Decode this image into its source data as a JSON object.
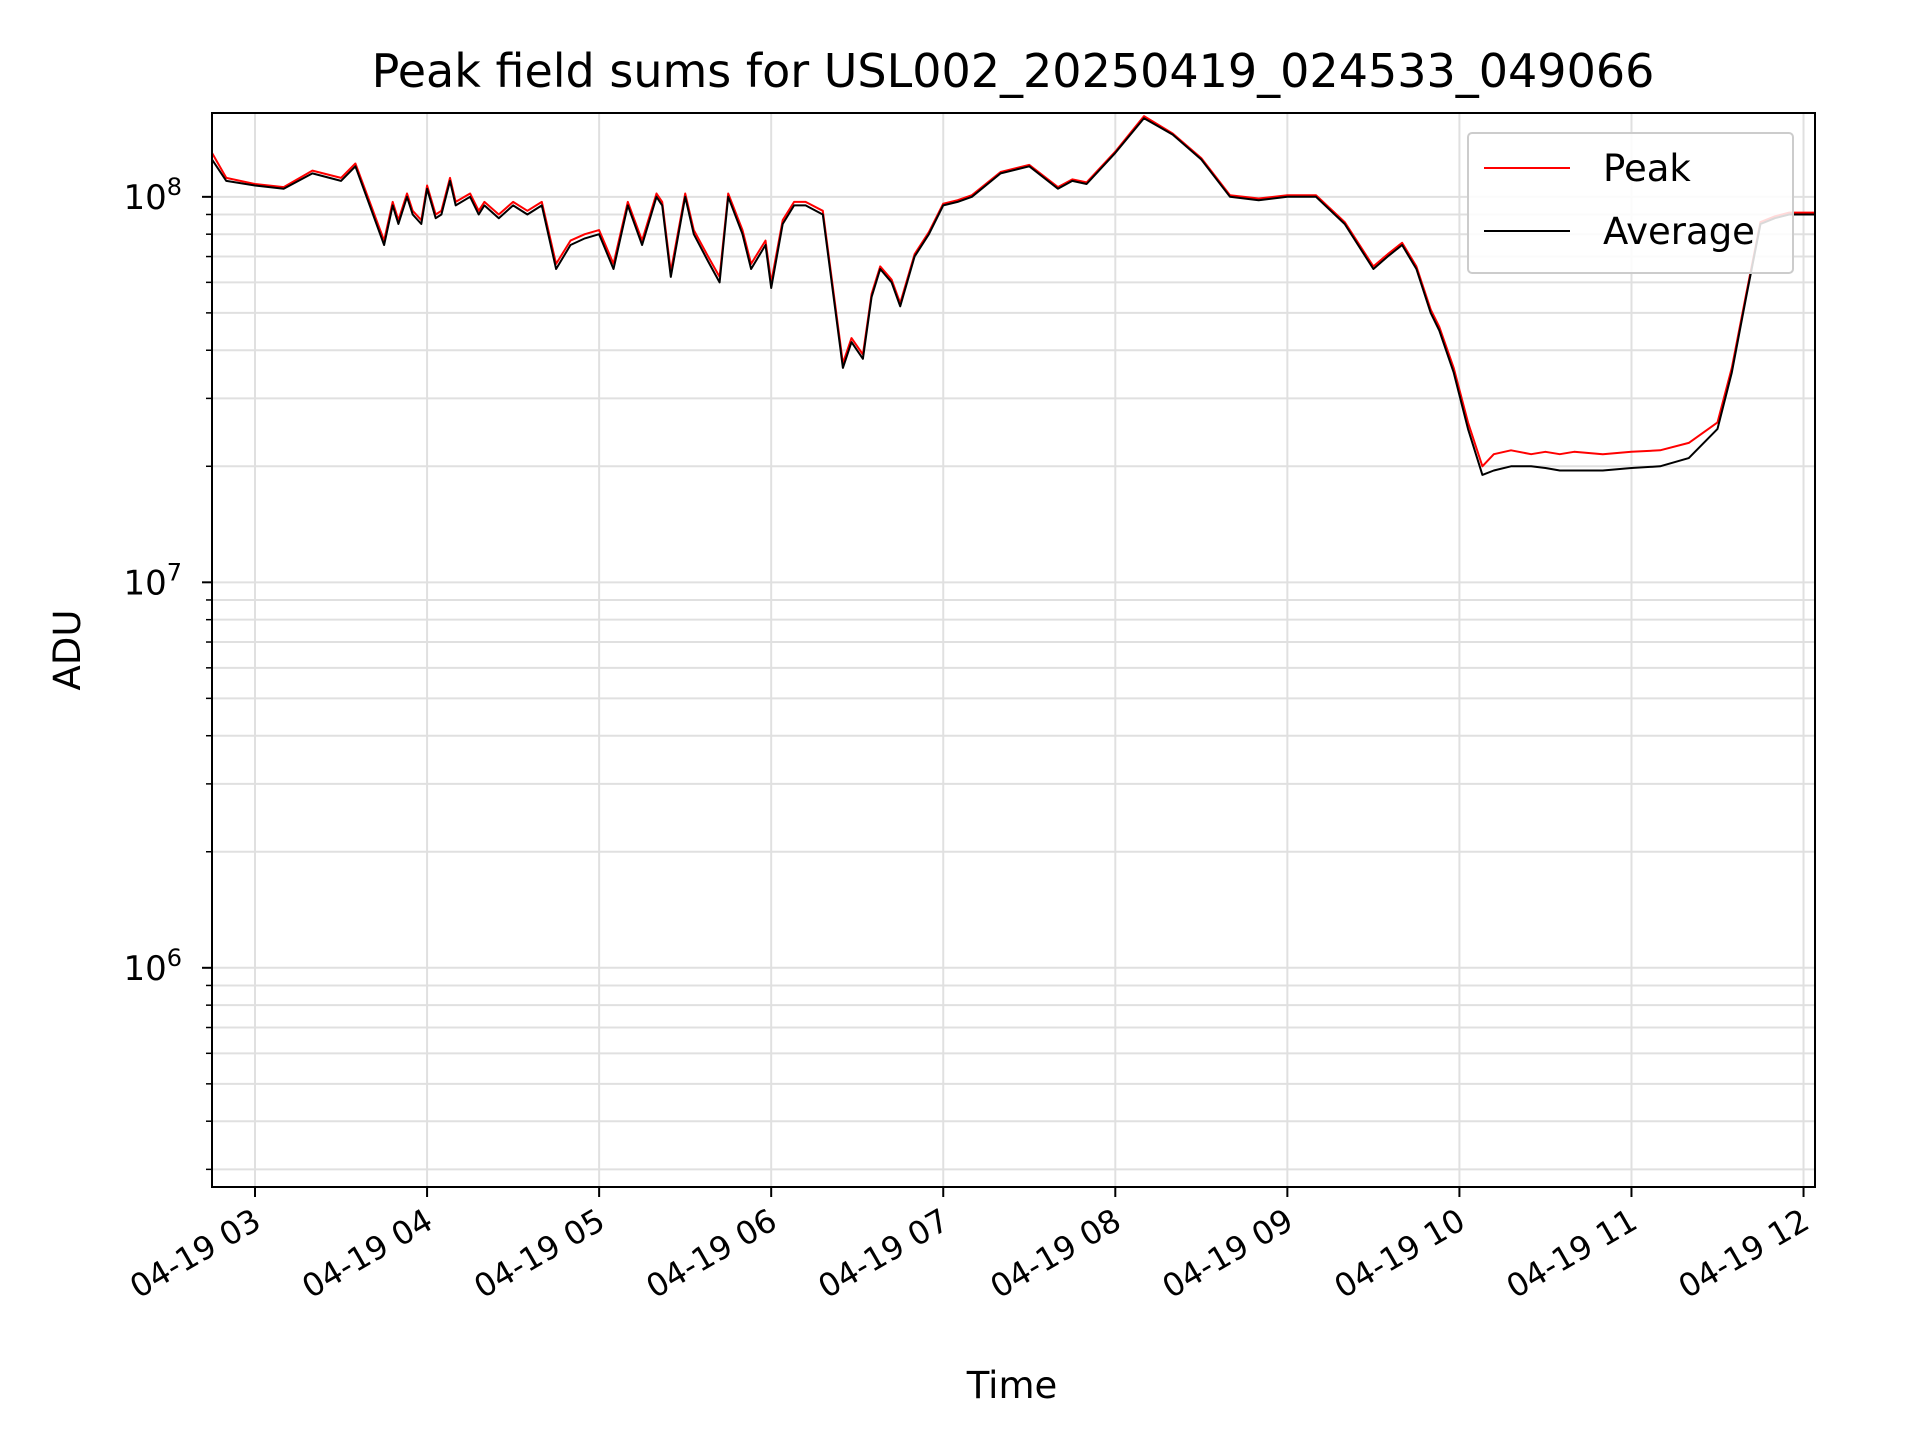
{
  "chart_data": {
    "type": "line",
    "title": "Peak field sums for USL002_20250419_024533_049066",
    "xlabel": "Time",
    "ylabel": "ADU",
    "y_scale": "log",
    "ylim": [
      270000,
      165000000
    ],
    "xlim": [
      "04-19 02:45",
      "04-19 12:04"
    ],
    "x_ticks": [
      "04-19 03",
      "04-19 04",
      "04-19 05",
      "04-19 06",
      "04-19 07",
      "04-19 08",
      "04-19 09",
      "04-19 10",
      "04-19 11",
      "04-19 12"
    ],
    "y_ticks": [
      {
        "value": 1000000,
        "base": "10",
        "exp": "6"
      },
      {
        "value": 10000000,
        "base": "10",
        "exp": "7"
      },
      {
        "value": 100000000,
        "base": "10",
        "exp": "8"
      }
    ],
    "grid": "on (major and minor)",
    "legend_position": "top-right",
    "colors": {
      "peak": "#ff0000",
      "average": "#000000",
      "grid": "#e0e0e0"
    },
    "series": [
      {
        "name": "Average",
        "x": [
          "04-19 02:45",
          "04-19 02:50",
          "04-19 03:00",
          "04-19 03:10",
          "04-19 03:20",
          "04-19 03:30",
          "04-19 03:35",
          "04-19 03:40",
          "04-19 03:45",
          "04-19 03:48",
          "04-19 03:50",
          "04-19 03:53",
          "04-19 03:55",
          "04-19 03:58",
          "04-19 04:00",
          "04-19 04:03",
          "04-19 04:05",
          "04-19 04:08",
          "04-19 04:10",
          "04-19 04:15",
          "04-19 04:18",
          "04-19 04:20",
          "04-19 04:25",
          "04-19 04:30",
          "04-19 04:35",
          "04-19 04:40",
          "04-19 04:45",
          "04-19 04:50",
          "04-19 04:55",
          "04-19 05:00",
          "04-19 05:05",
          "04-19 05:10",
          "04-19 05:15",
          "04-19 05:20",
          "04-19 05:22",
          "04-19 05:25",
          "04-19 05:30",
          "04-19 05:33",
          "04-19 05:38",
          "04-19 05:42",
          "04-19 05:45",
          "04-19 05:50",
          "04-19 05:53",
          "04-19 05:58",
          "04-19 06:00",
          "04-19 06:04",
          "04-19 06:08",
          "04-19 06:12",
          "04-19 06:18",
          "04-19 06:25",
          "04-19 06:28",
          "04-19 06:32",
          "04-19 06:35",
          "04-19 06:38",
          "04-19 06:42",
          "04-19 06:45",
          "04-19 06:50",
          "04-19 06:55",
          "04-19 07:00",
          "04-19 07:05",
          "04-19 07:10",
          "04-19 07:20",
          "04-19 07:30",
          "04-19 07:40",
          "04-19 07:45",
          "04-19 07:50",
          "04-19 08:00",
          "04-19 08:10",
          "04-19 08:20",
          "04-19 08:30",
          "04-19 08:40",
          "04-19 08:50",
          "04-19 09:00",
          "04-19 09:10",
          "04-19 09:20",
          "04-19 09:30",
          "04-19 09:35",
          "04-19 09:40",
          "04-19 09:45",
          "04-19 09:50",
          "04-19 09:53",
          "04-19 09:58",
          "04-19 10:03",
          "04-19 10:08",
          "04-19 10:12",
          "04-19 10:18",
          "04-19 10:25",
          "04-19 10:30",
          "04-19 10:35",
          "04-19 10:40",
          "04-19 10:50",
          "04-19 11:00",
          "04-19 11:10",
          "04-19 11:20",
          "04-19 11:30",
          "04-19 11:35",
          "04-19 11:40",
          "04-19 11:45",
          "04-19 11:50",
          "04-19 11:55",
          "04-19 12:00",
          "04-19 12:04"
        ],
        "y": [
          125000000,
          110000000,
          107000000,
          105000000,
          115000000,
          110000000,
          120000000,
          95000000,
          75000000,
          95000000,
          85000000,
          100000000,
          90000000,
          85000000,
          105000000,
          88000000,
          90000000,
          110000000,
          95000000,
          100000000,
          90000000,
          95000000,
          88000000,
          95000000,
          90000000,
          95000000,
          65000000,
          75000000,
          78000000,
          80000000,
          65000000,
          95000000,
          75000000,
          100000000,
          95000000,
          62000000,
          100000000,
          80000000,
          68000000,
          60000000,
          100000000,
          80000000,
          65000000,
          75000000,
          58000000,
          85000000,
          95000000,
          95000000,
          90000000,
          36000000,
          42000000,
          38000000,
          55000000,
          65000000,
          60000000,
          52000000,
          70000000,
          80000000,
          95000000,
          97000000,
          100000000,
          115000000,
          120000000,
          105000000,
          110000000,
          108000000,
          130000000,
          160000000,
          145000000,
          125000000,
          100000000,
          98000000,
          100000000,
          100000000,
          85000000,
          65000000,
          70000000,
          75000000,
          65000000,
          50000000,
          45000000,
          35000000,
          25000000,
          19000000,
          19500000,
          20000000,
          20000000,
          19800000,
          19500000,
          19500000,
          19500000,
          19800000,
          20000000,
          21000000,
          25000000,
          35000000,
          55000000,
          85000000,
          88000000,
          90000000,
          90000000,
          90000000
        ]
      },
      {
        "name": "Peak",
        "x": [
          "04-19 02:45",
          "04-19 02:50",
          "04-19 03:00",
          "04-19 03:10",
          "04-19 03:20",
          "04-19 03:30",
          "04-19 03:35",
          "04-19 03:40",
          "04-19 03:45",
          "04-19 03:48",
          "04-19 03:50",
          "04-19 03:53",
          "04-19 03:55",
          "04-19 03:58",
          "04-19 04:00",
          "04-19 04:03",
          "04-19 04:05",
          "04-19 04:08",
          "04-19 04:10",
          "04-19 04:15",
          "04-19 04:18",
          "04-19 04:20",
          "04-19 04:25",
          "04-19 04:30",
          "04-19 04:35",
          "04-19 04:40",
          "04-19 04:45",
          "04-19 04:50",
          "04-19 04:55",
          "04-19 05:00",
          "04-19 05:05",
          "04-19 05:10",
          "04-19 05:15",
          "04-19 05:20",
          "04-19 05:22",
          "04-19 05:25",
          "04-19 05:30",
          "04-19 05:33",
          "04-19 05:38",
          "04-19 05:42",
          "04-19 05:45",
          "04-19 05:50",
          "04-19 05:53",
          "04-19 05:58",
          "04-19 06:00",
          "04-19 06:04",
          "04-19 06:08",
          "04-19 06:12",
          "04-19 06:18",
          "04-19 06:25",
          "04-19 06:28",
          "04-19 06:32",
          "04-19 06:35",
          "04-19 06:38",
          "04-19 06:42",
          "04-19 06:45",
          "04-19 06:50",
          "04-19 06:55",
          "04-19 07:00",
          "04-19 07:05",
          "04-19 07:10",
          "04-19 07:20",
          "04-19 07:30",
          "04-19 07:40",
          "04-19 07:45",
          "04-19 07:50",
          "04-19 08:00",
          "04-19 08:10",
          "04-19 08:20",
          "04-19 08:30",
          "04-19 08:40",
          "04-19 08:50",
          "04-19 09:00",
          "04-19 09:10",
          "04-19 09:20",
          "04-19 09:30",
          "04-19 09:35",
          "04-19 09:40",
          "04-19 09:45",
          "04-19 09:50",
          "04-19 09:53",
          "04-19 09:58",
          "04-19 10:03",
          "04-19 10:08",
          "04-19 10:12",
          "04-19 10:18",
          "04-19 10:25",
          "04-19 10:30",
          "04-19 10:35",
          "04-19 10:40",
          "04-19 10:50",
          "04-19 11:00",
          "04-19 11:10",
          "04-19 11:20",
          "04-19 11:30",
          "04-19 11:35",
          "04-19 11:40",
          "04-19 11:45",
          "04-19 11:50",
          "04-19 11:55",
          "04-19 12:00",
          "04-19 12:04"
        ],
        "y": [
          130000000,
          112000000,
          108000000,
          106000000,
          117000000,
          112000000,
          122000000,
          97000000,
          77000000,
          97000000,
          87000000,
          102000000,
          92000000,
          87000000,
          107000000,
          90000000,
          92000000,
          112000000,
          97000000,
          102000000,
          92000000,
          97000000,
          90000000,
          97000000,
          92000000,
          97000000,
          67000000,
          77000000,
          80000000,
          82000000,
          67000000,
          97000000,
          77000000,
          102000000,
          97000000,
          64000000,
          102000000,
          82000000,
          70000000,
          62000000,
          102000000,
          82000000,
          67000000,
          77000000,
          60000000,
          87000000,
          97000000,
          97000000,
          92000000,
          37000000,
          43000000,
          39000000,
          56000000,
          66000000,
          61000000,
          53000000,
          71000000,
          81000000,
          96000000,
          98000000,
          101000000,
          116000000,
          121000000,
          106000000,
          111000000,
          109000000,
          131000000,
          162000000,
          146000000,
          126000000,
          101000000,
          99000000,
          101000000,
          101000000,
          86000000,
          66000000,
          71000000,
          76000000,
          66000000,
          51000000,
          46000000,
          36000000,
          26000000,
          20000000,
          21500000,
          22000000,
          21500000,
          21800000,
          21500000,
          21800000,
          21500000,
          21800000,
          22000000,
          23000000,
          26000000,
          36000000,
          56000000,
          86000000,
          89000000,
          91000000,
          91000000,
          91000000
        ]
      }
    ]
  }
}
